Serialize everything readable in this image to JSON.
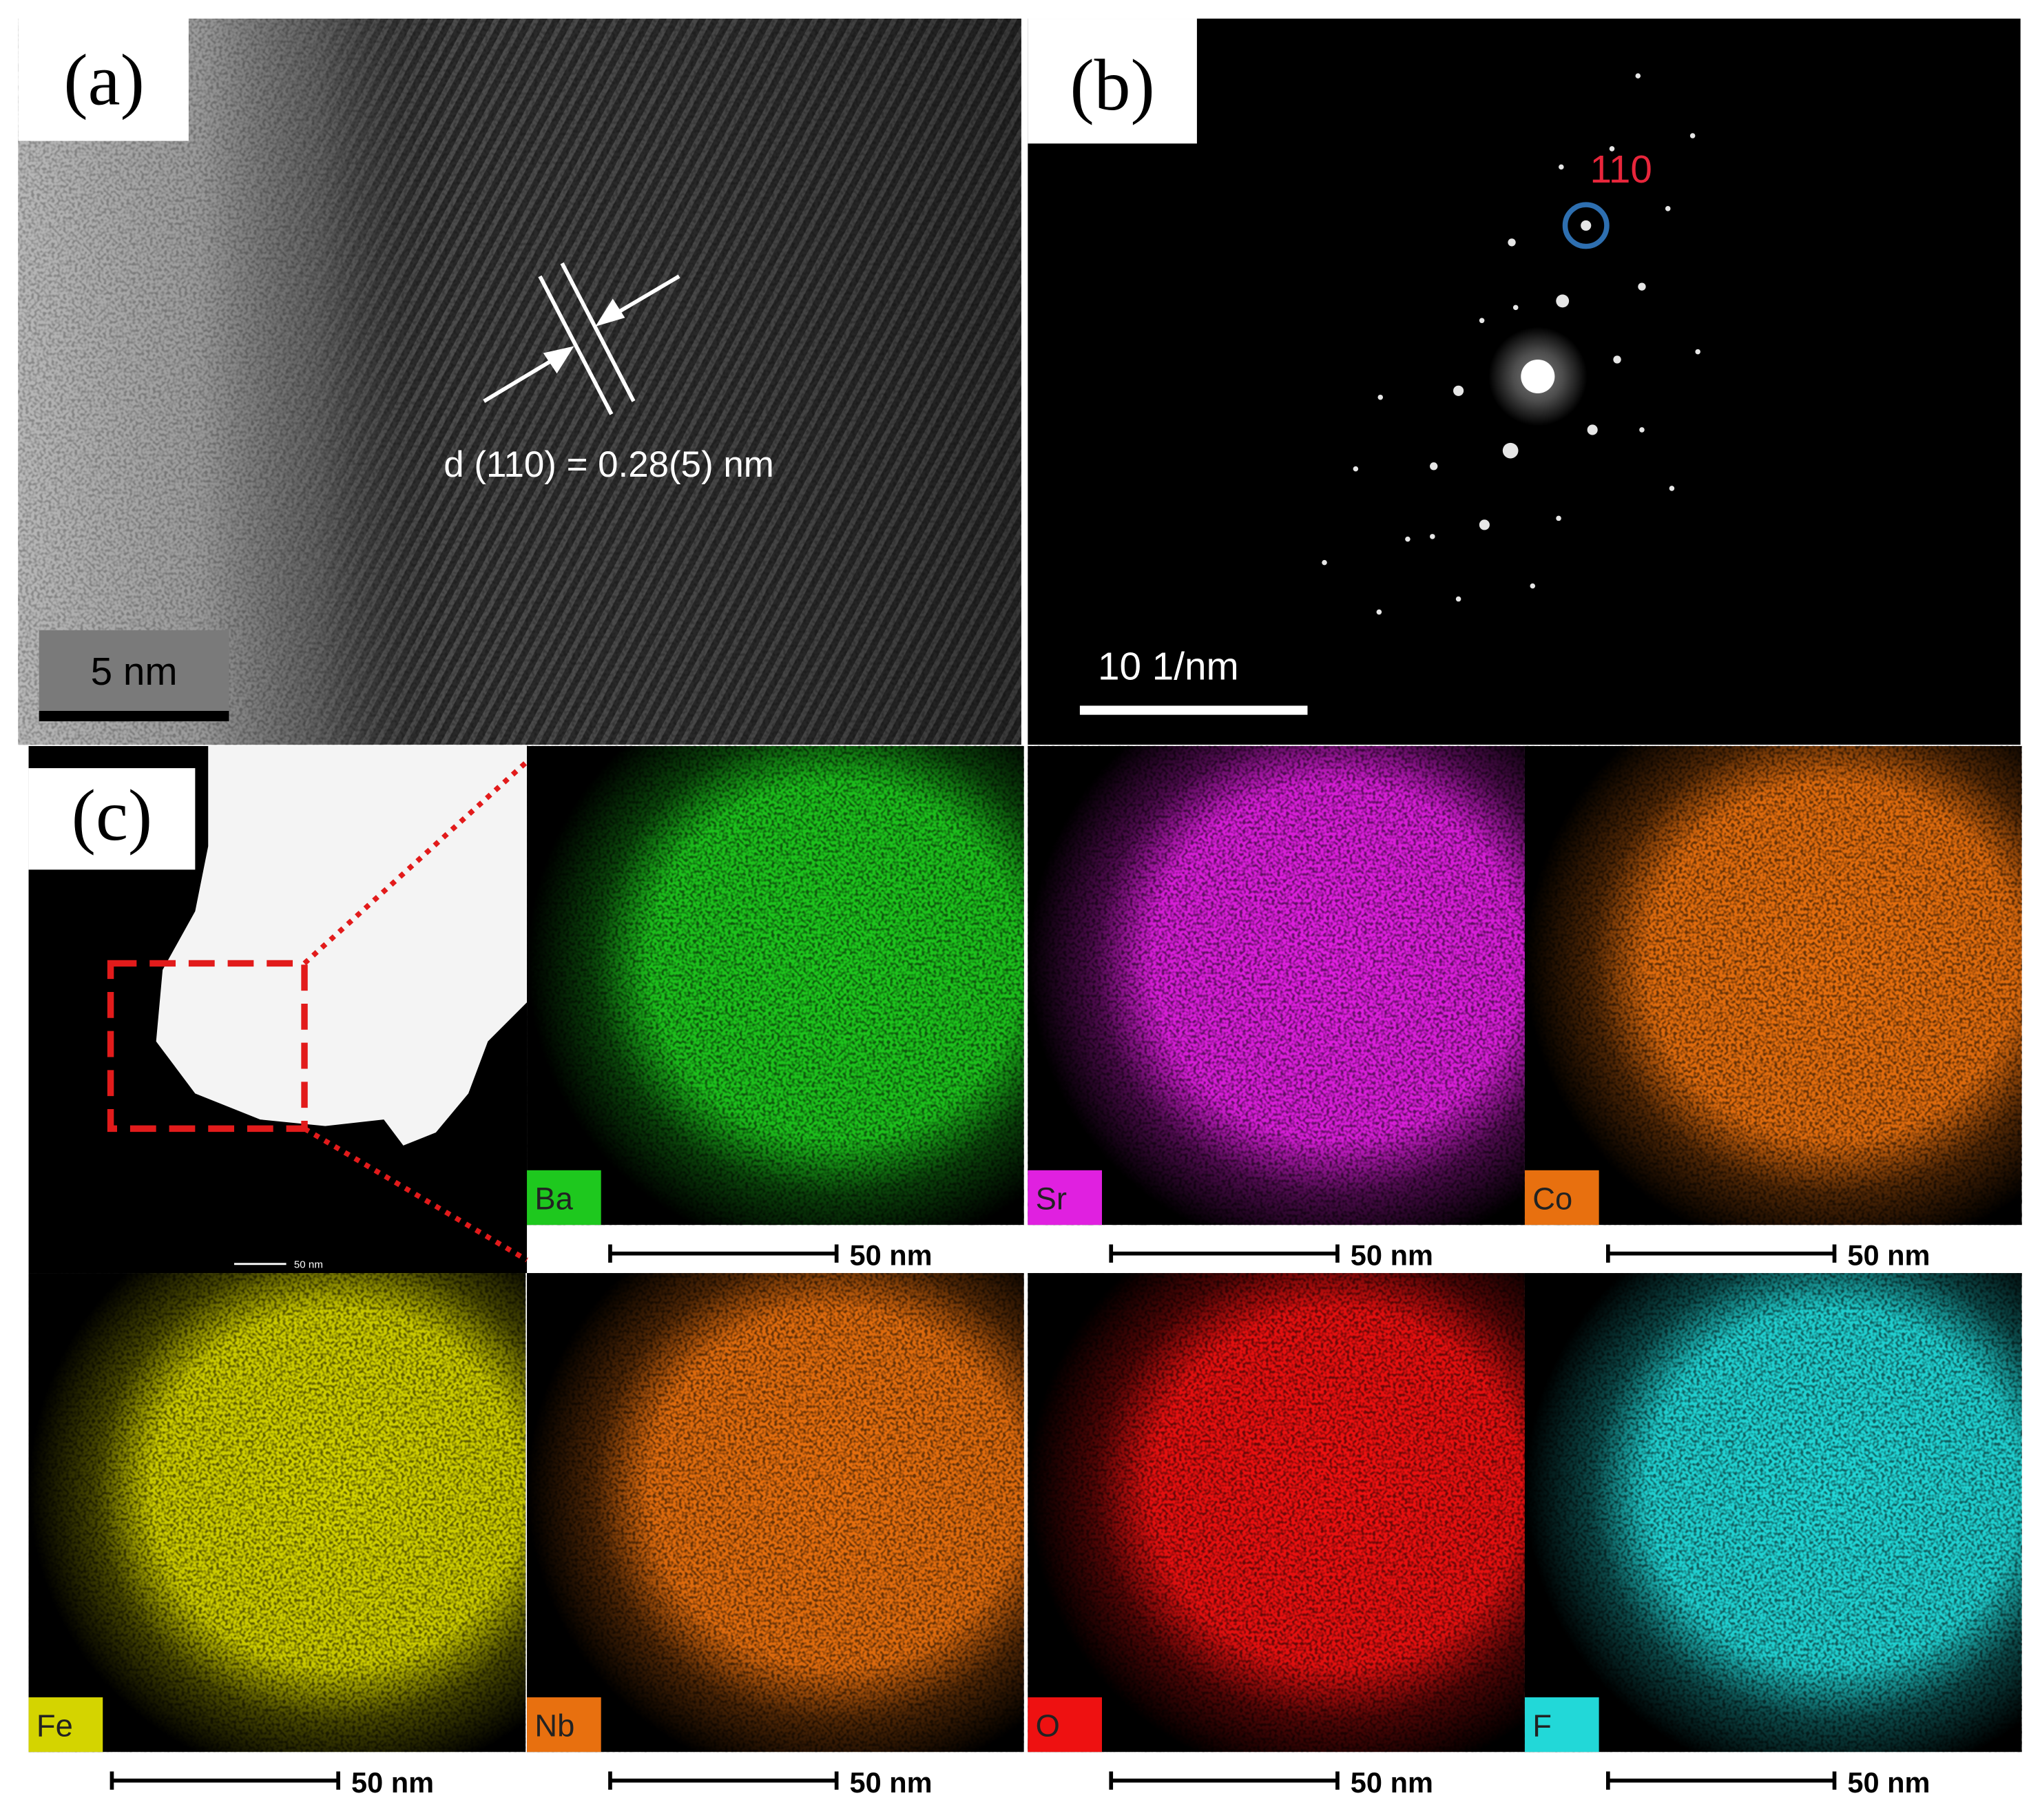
{
  "panels": {
    "a": {
      "label": "(a)",
      "annotation": "d (110) = 0.28(5) nm",
      "scale_bar": "5 nm"
    },
    "b": {
      "label": "(b)",
      "spot_label": "110",
      "scale_bar": "10 1/nm"
    },
    "c": {
      "label": "(c)",
      "overview_scale_bar": "50 nm",
      "maps": [
        {
          "element": "Ba",
          "color": "#1ec81e",
          "scale_bar": "50 nm"
        },
        {
          "element": "Sr",
          "color": "#e020e0",
          "scale_bar": "50 nm"
        },
        {
          "element": "Co",
          "color": "#e8700f",
          "scale_bar": "50 nm"
        },
        {
          "element": "Fe",
          "color": "#d4d400",
          "scale_bar": "50 nm"
        },
        {
          "element": "Nb",
          "color": "#e8700f",
          "scale_bar": "50 nm"
        },
        {
          "element": "O",
          "color": "#ee1111",
          "scale_bar": "50 nm"
        },
        {
          "element": "F",
          "color": "#22d8d8",
          "scale_bar": "50 nm"
        }
      ]
    }
  }
}
